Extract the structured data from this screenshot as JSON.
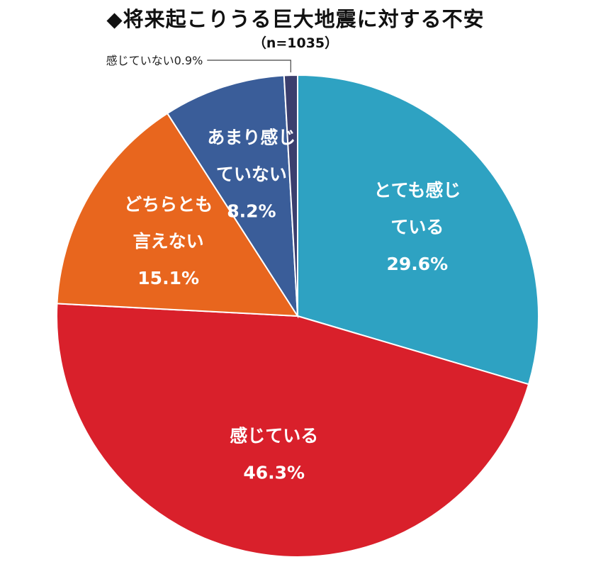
{
  "chart_data": {
    "type": "pie",
    "title": "◆将来起こりうる巨大地震に対する不安",
    "subtitle": "（n=1035）",
    "start_angle": "12 o'clock",
    "direction": "clockwise",
    "slices": [
      {
        "label_lines": [
          "とても感じ",
          "ている"
        ],
        "value_text": "29.6%",
        "value": 29.6,
        "color": "#2ea2c2"
      },
      {
        "label_lines": [
          "感じている"
        ],
        "value_text": "46.3%",
        "value": 46.3,
        "color": "#d9202b"
      },
      {
        "label_lines": [
          "どちらとも",
          "言えない"
        ],
        "value_text": "15.1%",
        "value": 15.1,
        "color": "#e8661e"
      },
      {
        "label_lines": [
          "あまり感じ",
          "ていない"
        ],
        "value_text": "8.2%",
        "value": 8.2,
        "color": "#3a5d99"
      },
      {
        "label_lines": [],
        "value_text": "",
        "callout_text": "感じていない0.9%",
        "value": 0.9,
        "color": "#3b3f6e"
      }
    ]
  }
}
